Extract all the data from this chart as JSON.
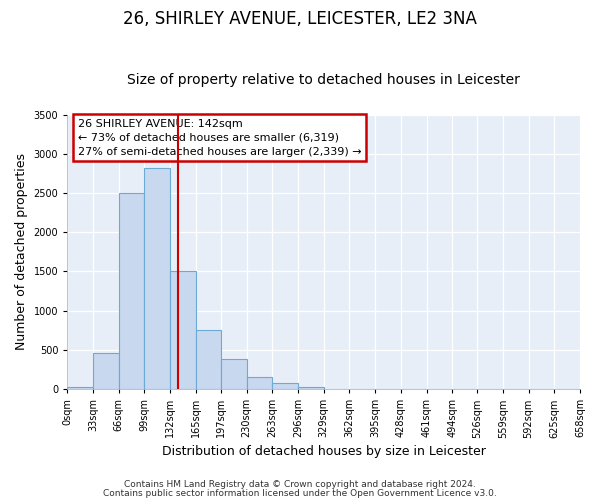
{
  "title": "26, SHIRLEY AVENUE, LEICESTER, LE2 3NA",
  "subtitle": "Size of property relative to detached houses in Leicester",
  "xlabel": "Distribution of detached houses by size in Leicester",
  "ylabel": "Number of detached properties",
  "bin_edges": [
    0,
    33,
    66,
    99,
    132,
    165,
    197,
    230,
    263,
    296,
    329,
    362,
    395,
    428,
    461,
    494,
    526,
    559,
    592,
    625,
    658
  ],
  "bar_heights": [
    25,
    460,
    2500,
    2820,
    1500,
    750,
    390,
    150,
    75,
    30,
    0,
    0,
    0,
    0,
    0,
    0,
    0,
    0,
    0,
    0
  ],
  "bar_color": "#c8d8ee",
  "bar_edge_color": "#6aaad4",
  "vline_x": 142,
  "vline_color": "#cc0000",
  "annotation_title": "26 SHIRLEY AVENUE: 142sqm",
  "annotation_line1": "← 73% of detached houses are smaller (6,319)",
  "annotation_line2": "27% of semi-detached houses are larger (2,339) →",
  "annotation_box_color": "#cc0000",
  "ylim": [
    0,
    3500
  ],
  "yticks": [
    0,
    500,
    1000,
    1500,
    2000,
    2500,
    3000,
    3500
  ],
  "tick_labels": [
    "0sqm",
    "33sqm",
    "66sqm",
    "99sqm",
    "132sqm",
    "165sqm",
    "197sqm",
    "230sqm",
    "263sqm",
    "296sqm",
    "329sqm",
    "362sqm",
    "395sqm",
    "428sqm",
    "461sqm",
    "494sqm",
    "526sqm",
    "559sqm",
    "592sqm",
    "625sqm",
    "658sqm"
  ],
  "footer_line1": "Contains HM Land Registry data © Crown copyright and database right 2024.",
  "footer_line2": "Contains public sector information licensed under the Open Government Licence v3.0.",
  "fig_bg_color": "#ffffff",
  "plot_bg_color": "#e8eef8",
  "grid_color": "#ffffff",
  "title_fontsize": 12,
  "subtitle_fontsize": 10,
  "axis_label_fontsize": 9,
  "tick_fontsize": 7,
  "footer_fontsize": 6.5,
  "annot_fontsize": 8
}
